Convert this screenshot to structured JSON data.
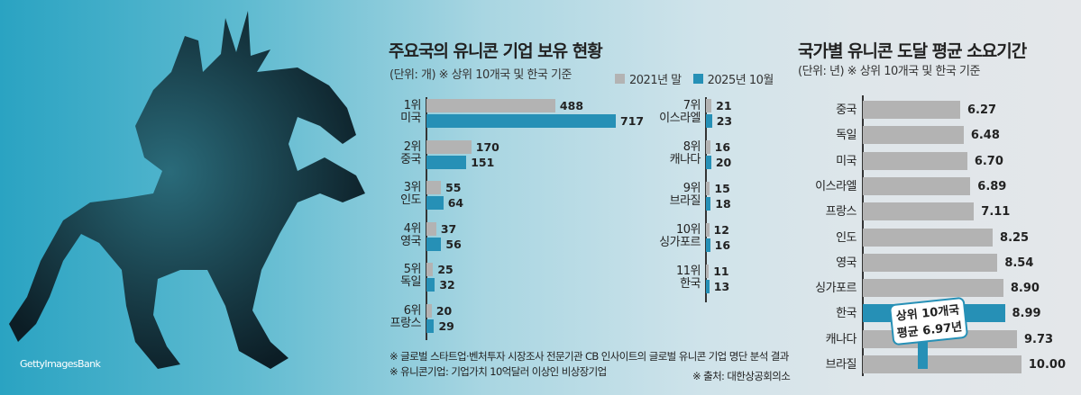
{
  "watermark": "GettyImagesBank",
  "colors": {
    "prev": "#b3b3b3",
    "curr": "#2690b6"
  },
  "chart_data": [
    {
      "type": "bar",
      "orientation": "horizontal",
      "title": "주요국의 유니콘 기업 보유 현황",
      "subtitle": "(단위: 개) ※ 상위 10개국 및 한국 기준",
      "legend": [
        "2021년 말",
        "2025년 10월"
      ],
      "categories": [
        {
          "rank": "1위",
          "name": "미국"
        },
        {
          "rank": "2위",
          "name": "중국"
        },
        {
          "rank": "3위",
          "name": "인도"
        },
        {
          "rank": "4위",
          "name": "영국"
        },
        {
          "rank": "5위",
          "name": "독일"
        },
        {
          "rank": "6위",
          "name": "프랑스"
        },
        {
          "rank": "7위",
          "name": "이스라엘"
        },
        {
          "rank": "8위",
          "name": "캐나다"
        },
        {
          "rank": "9위",
          "name": "브라질"
        },
        {
          "rank": "10위",
          "name": "싱가포르"
        },
        {
          "rank": "11위",
          "name": "한국"
        }
      ],
      "series": [
        {
          "name": "2021년 말",
          "values": [
            488,
            170,
            55,
            37,
            25,
            20,
            21,
            16,
            15,
            12,
            11
          ]
        },
        {
          "name": "2025년 10월",
          "values": [
            717,
            151,
            64,
            56,
            32,
            29,
            23,
            20,
            18,
            16,
            13
          ]
        }
      ],
      "notes": [
        "※ 글로벌 스타트업·벤처투자 시장조사 전문기관 CB 인사이트의 글로벌 유니콘 기업 명단 분석 결과",
        "※ 유니콘기업: 기업가치 10억달러 이상인 비상장기업"
      ],
      "source": "※ 출처: 대한상공회의소"
    },
    {
      "type": "bar",
      "orientation": "horizontal",
      "title": "국가별 유니콘 도달 평균 소요기간",
      "subtitle": "(단위: 년) ※ 상위 10개국 및 한국 기준",
      "categories": [
        "중국",
        "독일",
        "미국",
        "이스라엘",
        "프랑스",
        "인도",
        "영국",
        "싱가포르",
        "한국",
        "캐나다",
        "브라질"
      ],
      "values": [
        6.27,
        6.48,
        6.7,
        6.89,
        7.11,
        8.25,
        8.54,
        8.9,
        8.99,
        9.73,
        10.0
      ],
      "value_labels": [
        "6.27",
        "6.48",
        "6.70",
        "6.89",
        "7.11",
        "8.25",
        "8.54",
        "8.90",
        "8.99",
        "9.73",
        "10.00"
      ],
      "highlight": "한국",
      "annotation": {
        "line1": "상위 10개국",
        "line2": "평균 6.97년",
        "value": 6.97
      }
    }
  ]
}
